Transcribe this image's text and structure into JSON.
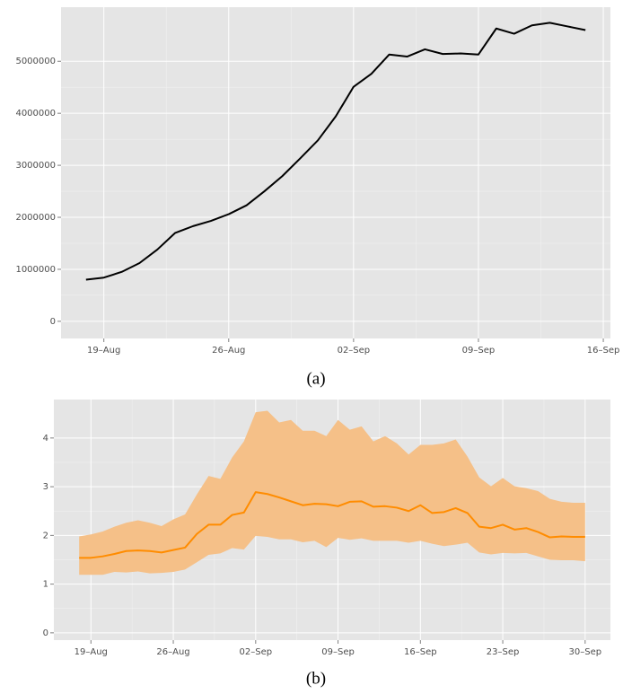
{
  "chart_data": [
    {
      "type": "line",
      "caption": "(a)",
      "color": "#000000",
      "grid": true,
      "x": [
        "18–Aug",
        "19–Aug",
        "20–Aug",
        "21–Aug",
        "22–Aug",
        "23–Aug",
        "24–Aug",
        "25–Aug",
        "26–Aug",
        "27–Aug",
        "28–Aug",
        "29–Aug",
        "30–Aug",
        "31–Aug",
        "01–Sep",
        "02–Sep",
        "03–Sep",
        "04–Sep",
        "05–Sep",
        "06–Sep",
        "07–Sep",
        "08–Sep",
        "09–Sep",
        "10–Sep",
        "11–Sep",
        "12–Sep",
        "13–Sep",
        "14–Sep",
        "15–Sep"
      ],
      "values": [
        800000,
        840000,
        950000,
        1120000,
        1380000,
        1700000,
        1830000,
        1930000,
        2060000,
        2230000,
        2500000,
        2790000,
        3130000,
        3480000,
        3940000,
        4510000,
        4760000,
        5130000,
        5090000,
        5230000,
        5140000,
        5150000,
        5130000,
        5630000,
        5530000,
        5690000,
        5740000,
        5670000,
        5600000
      ],
      "xticks": [
        "19–Aug",
        "26–Aug",
        "02–Sep",
        "09–Sep",
        "16–Sep"
      ],
      "ylim": [
        -330000,
        6040000
      ],
      "yticks": [
        0,
        1000000,
        2000000,
        3000000,
        4000000,
        5000000
      ]
    },
    {
      "type": "line",
      "caption": "(b)",
      "color": "#ff8c00",
      "band_color": "#f5c088",
      "grid": true,
      "x": [
        "18–Aug",
        "19–Aug",
        "20–Aug",
        "21–Aug",
        "22–Aug",
        "23–Aug",
        "24–Aug",
        "25–Aug",
        "26–Aug",
        "27–Aug",
        "28–Aug",
        "29–Aug",
        "30–Aug",
        "31–Aug",
        "01–Sep",
        "02–Sep",
        "03–Sep",
        "04–Sep",
        "05–Sep",
        "06–Sep",
        "07–Sep",
        "08–Sep",
        "09–Sep",
        "10–Sep",
        "11–Sep",
        "12–Sep",
        "13–Sep",
        "14–Sep",
        "15–Sep",
        "16–Sep",
        "17–Sep",
        "18–Sep",
        "19–Sep",
        "20–Sep",
        "21–Sep",
        "22–Sep",
        "23–Sep",
        "24–Sep",
        "25–Sep",
        "26–Sep",
        "27–Sep",
        "28–Sep",
        "29–Sep",
        "30–Sep"
      ],
      "values": [
        1.54,
        1.54,
        1.57,
        1.62,
        1.68,
        1.69,
        1.68,
        1.65,
        1.7,
        1.75,
        2.03,
        2.22,
        2.22,
        2.42,
        2.47,
        2.89,
        2.85,
        2.78,
        2.7,
        2.62,
        2.65,
        2.64,
        2.6,
        2.69,
        2.7,
        2.59,
        2.6,
        2.57,
        2.5,
        2.62,
        2.46,
        2.48,
        2.56,
        2.46,
        2.18,
        2.15,
        2.22,
        2.12,
        2.15,
        2.07,
        1.96,
        1.98,
        1.97,
        1.97
      ],
      "lower": [
        1.19,
        1.19,
        1.19,
        1.25,
        1.24,
        1.26,
        1.22,
        1.23,
        1.25,
        1.3,
        1.45,
        1.6,
        1.63,
        1.74,
        1.71,
        1.99,
        1.97,
        1.92,
        1.92,
        1.86,
        1.89,
        1.76,
        1.95,
        1.91,
        1.94,
        1.89,
        1.89,
        1.89,
        1.85,
        1.89,
        1.83,
        1.78,
        1.81,
        1.85,
        1.65,
        1.61,
        1.64,
        1.63,
        1.64,
        1.57,
        1.5,
        1.49,
        1.49,
        1.47
      ],
      "upper": [
        1.98,
        2.02,
        2.08,
        2.18,
        2.26,
        2.31,
        2.26,
        2.19,
        2.33,
        2.43,
        2.84,
        3.22,
        3.16,
        3.6,
        3.93,
        4.53,
        4.56,
        4.32,
        4.37,
        4.15,
        4.15,
        4.04,
        4.37,
        4.17,
        4.24,
        3.93,
        4.04,
        3.89,
        3.66,
        3.86,
        3.86,
        3.89,
        3.97,
        3.62,
        3.19,
        3.01,
        3.18,
        3.01,
        2.97,
        2.91,
        2.75,
        2.69,
        2.67,
        2.67
      ],
      "xticks": [
        "19–Aug",
        "26–Aug",
        "02–Sep",
        "09–Sep",
        "16–Sep",
        "23–Sep",
        "30–Sep"
      ],
      "ylim": [
        -0.15,
        4.79
      ],
      "yticks": [
        0,
        1,
        2,
        3,
        4
      ]
    }
  ]
}
